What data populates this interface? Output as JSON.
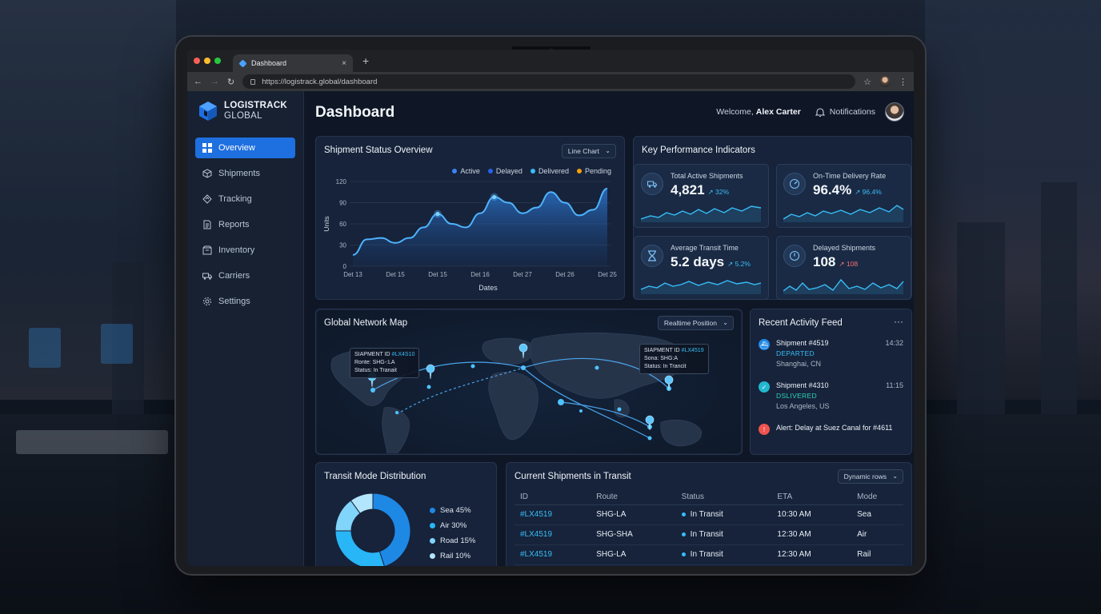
{
  "browser": {
    "tab_title": "Dashboard",
    "url": "https://logistrack.global/dashboard",
    "new_tab": "+",
    "close": "×"
  },
  "brand": {
    "name": "LOGISTRACK",
    "sub": "GLOBAL"
  },
  "sidebar": {
    "items": [
      {
        "label": "Overview",
        "icon": "grid-icon",
        "active": true
      },
      {
        "label": "Shipments",
        "icon": "box-icon"
      },
      {
        "label": "Tracking",
        "icon": "route-icon"
      },
      {
        "label": "Reports",
        "icon": "document-icon"
      },
      {
        "label": "Inventory",
        "icon": "inventory-icon"
      },
      {
        "label": "Carriers",
        "icon": "truck-icon"
      },
      {
        "label": "Settings",
        "icon": "gear-icon"
      }
    ]
  },
  "header": {
    "title": "Dashboard",
    "welcome": "Welcome,",
    "user": "Alex Carter",
    "notifications": "Notifications"
  },
  "status_overview": {
    "title": "Shipment Status Overview",
    "dropdown": "Line Chart",
    "legend": [
      {
        "name": "Active",
        "color": "#3b82f6"
      },
      {
        "name": "Delayed",
        "color": "#2563eb"
      },
      {
        "name": "Delivered",
        "color": "#38bdf8"
      },
      {
        "name": "Pending",
        "color": "#f59e0b"
      }
    ]
  },
  "chart_data": {
    "type": "area",
    "xlabel": "Dates",
    "ylabel": "Units",
    "ylim": [
      0,
      120
    ],
    "yticks": [
      0,
      30,
      60,
      90,
      120
    ],
    "x_tick_labels": [
      "Det 13",
      "Det 15",
      "Det 15",
      "Det 16",
      "Det 27",
      "Det 26",
      "Det 25"
    ],
    "series": [
      {
        "name": "Active",
        "values": [
          16,
          38,
          40,
          33,
          40,
          55,
          74,
          60,
          55,
          75,
          98,
          90,
          75,
          83,
          105,
          90,
          72,
          80,
          110
        ]
      }
    ],
    "grid": true,
    "legend_position": "top-right"
  },
  "kpi": {
    "title": "Key Performance Indicators",
    "cards": [
      {
        "label": "Total Active Shipments",
        "value": "4,821",
        "delta": "↗ 32%",
        "icon": "truck-icon"
      },
      {
        "label": "On-Time Delivery Rate",
        "value": "96.4%",
        "delta": "↗ 96.4%",
        "icon": "gauge-icon"
      },
      {
        "label": "Average Transit Time",
        "value": "5.2 days",
        "delta": "↗ 5.2%",
        "icon": "hourglass-icon"
      },
      {
        "label": "Delayed Shipments",
        "value": "108",
        "delta": "↗ 108",
        "icon": "clock-icon"
      }
    ]
  },
  "map": {
    "title": "Global Network Map",
    "dropdown": "Realtime Position",
    "tooltip_left": {
      "line1": "SIAPMENT ID",
      "id": "#LX4S10",
      "line2": "Ronte: SHG-:LA",
      "line3": "Status: In Tranait"
    },
    "tooltip_right": {
      "line1": "SIAPMENT ID",
      "id": "#LX4519",
      "line2": "Sona: SHG:A",
      "line3": "Status: In Trancit"
    }
  },
  "feed": {
    "title": "Recent Activity Feed",
    "more": "···",
    "items": [
      {
        "title": "Shipment #4519",
        "time": "14:32",
        "status": "DEPARTED",
        "location": "Shanghai, CN",
        "color": "#1e88e5"
      },
      {
        "title": "Shipment #4310",
        "time": "11:15",
        "status": "DSLIVERED",
        "location": "Los Angeles, US",
        "color": "#22b8cf"
      },
      {
        "title": "Alert: Delay at Suez Canal for #4611",
        "color": "#ef5350"
      }
    ]
  },
  "transit": {
    "title": "Transit Mode Distribution",
    "slices": [
      {
        "label": "Sea 45%",
        "value": 45,
        "color": "#1e88e5"
      },
      {
        "label": "Air 30%",
        "value": 30,
        "color": "#29b6f6"
      },
      {
        "label": "Road 15%",
        "value": 15,
        "color": "#81d4fa"
      },
      {
        "label": "Rail 10%",
        "value": 10,
        "color": "#b3e5fc"
      }
    ]
  },
  "shipments": {
    "title": "Current Shipments in Transit",
    "dropdown": "Dynamic rows",
    "columns": [
      "ID",
      "Route",
      "Status",
      "ETA",
      "Mode"
    ],
    "rows": [
      [
        "#LX4519",
        "SHG-LA",
        "In Transit",
        "10:30 AM",
        "Sea"
      ],
      [
        "#LX4519",
        "SHG-SHA",
        "In Transit",
        "12:30 AM",
        "Air"
      ],
      [
        "#LX4519",
        "SHG-LA",
        "In Transit",
        "12:30 AM",
        "Rail"
      ]
    ]
  }
}
